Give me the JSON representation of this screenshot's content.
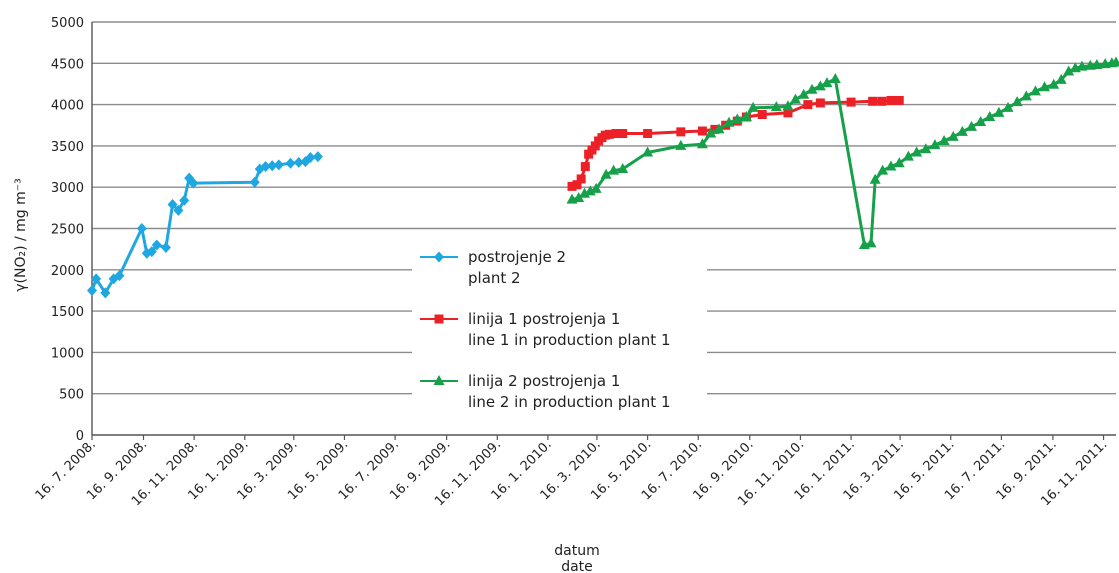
{
  "chart_data": {
    "type": "line",
    "xlabel": "datum",
    "xlabel_en": "date",
    "ylabel": "γ(NO₂) / mg m⁻³",
    "ylim": [
      0,
      5000
    ],
    "yticks": [
      "0",
      "500",
      "1000",
      "1500",
      "2000",
      "2500",
      "3000",
      "3500",
      "4000",
      "4500",
      "5000"
    ],
    "xlim": [
      "2008-07-16",
      "2011-12-01"
    ],
    "xticks": [
      "16. 7. 2008.",
      "16. 9. 2008.",
      "16. 11. 2008.",
      "16. 1. 2009.",
      "16. 3. 2009.",
      "16. 5. 2009.",
      "16. 7. 2009.",
      "16. 9. 2009.",
      "16. 11. 2009.",
      "16. 1. 2010.",
      "16. 3. 2010.",
      "16. 5. 2010.",
      "16. 7. 2010.",
      "16. 9. 2010.",
      "16. 11. 2010.",
      "16. 1. 2011.",
      "16. 3. 2011.",
      "16. 5. 2011.",
      "16. 7. 2011.",
      "16. 9. 2011.",
      "16. 11. 2011."
    ],
    "grid": true,
    "legend_position": "center",
    "series": [
      {
        "name": "postrojenje 2",
        "name_en": "plant 2",
        "color": "#1ea7e0",
        "marker": "diamond",
        "points": [
          [
            "2008-07-16",
            1750
          ],
          [
            "2008-07-21",
            1890
          ],
          [
            "2008-08-01",
            1720
          ],
          [
            "2008-08-11",
            1890
          ],
          [
            "2008-08-18",
            1930
          ],
          [
            "2008-09-14",
            2500
          ],
          [
            "2008-09-20",
            2200
          ],
          [
            "2008-09-26",
            2220
          ],
          [
            "2008-10-02",
            2300
          ],
          [
            "2008-10-13",
            2270
          ],
          [
            "2008-10-21",
            2790
          ],
          [
            "2008-10-28",
            2720
          ],
          [
            "2008-11-04",
            2840
          ],
          [
            "2008-11-10",
            3110
          ],
          [
            "2008-11-15",
            3050
          ],
          [
            "2009-01-28",
            3060
          ],
          [
            "2009-02-03",
            3220
          ],
          [
            "2009-02-10",
            3250
          ],
          [
            "2009-02-18",
            3260
          ],
          [
            "2009-02-26",
            3270
          ],
          [
            "2009-03-12",
            3290
          ],
          [
            "2009-03-22",
            3300
          ],
          [
            "2009-03-30",
            3310
          ],
          [
            "2009-04-05",
            3360
          ],
          [
            "2009-04-14",
            3370
          ]
        ]
      },
      {
        "name": "linija 1 postrojenja 1",
        "name_en": "line 1 in production plant 1",
        "color": "#ec2127",
        "marker": "square",
        "points": [
          [
            "2010-02-14",
            3010
          ],
          [
            "2010-02-20",
            3030
          ],
          [
            "2010-02-25",
            3100
          ],
          [
            "2010-03-02",
            3250
          ],
          [
            "2010-03-06",
            3400
          ],
          [
            "2010-03-10",
            3450
          ],
          [
            "2010-03-14",
            3500
          ],
          [
            "2010-03-18",
            3560
          ],
          [
            "2010-03-22",
            3600
          ],
          [
            "2010-03-26",
            3630
          ],
          [
            "2010-03-31",
            3640
          ],
          [
            "2010-04-08",
            3650
          ],
          [
            "2010-04-16",
            3650
          ],
          [
            "2010-05-16",
            3650
          ],
          [
            "2010-06-25",
            3670
          ],
          [
            "2010-07-21",
            3680
          ],
          [
            "2010-08-05",
            3700
          ],
          [
            "2010-08-18",
            3750
          ],
          [
            "2010-09-01",
            3800
          ],
          [
            "2010-09-12",
            3850
          ],
          [
            "2010-10-01",
            3880
          ],
          [
            "2010-11-01",
            3900
          ],
          [
            "2010-11-25",
            4000
          ],
          [
            "2010-12-10",
            4020
          ],
          [
            "2011-01-16",
            4030
          ],
          [
            "2011-02-11",
            4040
          ],
          [
            "2011-02-22",
            4040
          ],
          [
            "2011-03-05",
            4050
          ],
          [
            "2011-03-15",
            4050
          ]
        ]
      },
      {
        "name": "linija 2 postrojenja 1",
        "name_en": "line 2 in production plant 1",
        "color": "#16a049",
        "marker": "triangle",
        "points": [
          [
            "2010-02-14",
            2850
          ],
          [
            "2010-02-22",
            2870
          ],
          [
            "2010-03-01",
            2920
          ],
          [
            "2010-03-08",
            2950
          ],
          [
            "2010-03-15",
            2980
          ],
          [
            "2010-03-27",
            3150
          ],
          [
            "2010-04-05",
            3200
          ],
          [
            "2010-04-16",
            3220
          ],
          [
            "2010-05-16",
            3420
          ],
          [
            "2010-06-25",
            3500
          ],
          [
            "2010-07-21",
            3520
          ],
          [
            "2010-07-31",
            3650
          ],
          [
            "2010-08-10",
            3700
          ],
          [
            "2010-08-22",
            3780
          ],
          [
            "2010-09-01",
            3820
          ],
          [
            "2010-09-12",
            3850
          ],
          [
            "2010-09-20",
            3960
          ],
          [
            "2010-10-18",
            3970
          ],
          [
            "2010-11-01",
            3980
          ],
          [
            "2010-11-10",
            4060
          ],
          [
            "2010-11-20",
            4120
          ],
          [
            "2010-11-30",
            4180
          ],
          [
            "2010-12-10",
            4220
          ],
          [
            "2010-12-18",
            4260
          ],
          [
            "2010-12-28",
            4310
          ],
          [
            "2011-02-01",
            2300
          ],
          [
            "2011-02-09",
            2320
          ],
          [
            "2011-02-14",
            3090
          ],
          [
            "2011-02-23",
            3200
          ],
          [
            "2011-03-05",
            3250
          ],
          [
            "2011-03-15",
            3290
          ],
          [
            "2011-03-26",
            3370
          ],
          [
            "2011-04-05",
            3420
          ],
          [
            "2011-04-16",
            3460
          ],
          [
            "2011-04-27",
            3510
          ],
          [
            "2011-05-08",
            3560
          ],
          [
            "2011-05-19",
            3610
          ],
          [
            "2011-05-30",
            3670
          ],
          [
            "2011-06-10",
            3730
          ],
          [
            "2011-06-21",
            3790
          ],
          [
            "2011-07-02",
            3850
          ],
          [
            "2011-07-13",
            3900
          ],
          [
            "2011-07-24",
            3960
          ],
          [
            "2011-08-04",
            4030
          ],
          [
            "2011-08-15",
            4100
          ],
          [
            "2011-08-26",
            4160
          ],
          [
            "2011-09-06",
            4210
          ],
          [
            "2011-09-17",
            4240
          ],
          [
            "2011-09-26",
            4300
          ],
          [
            "2011-10-05",
            4400
          ],
          [
            "2011-10-13",
            4440
          ],
          [
            "2011-10-21",
            4460
          ],
          [
            "2011-10-31",
            4470
          ],
          [
            "2011-11-08",
            4480
          ],
          [
            "2011-11-18",
            4490
          ],
          [
            "2011-11-26",
            4500
          ],
          [
            "2011-12-01",
            4510
          ]
        ]
      }
    ]
  }
}
